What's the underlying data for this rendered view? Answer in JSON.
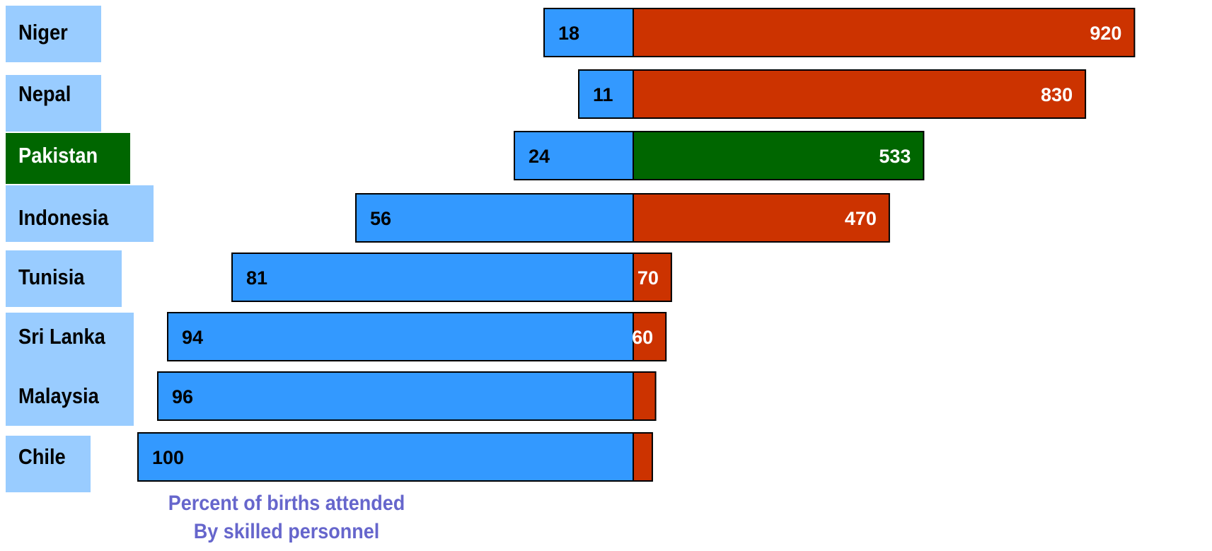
{
  "chart_data": {
    "type": "bar",
    "orientation": "horizontal-diverging",
    "categories": [
      "Niger",
      "Nepal",
      "Pakistan",
      "Indonesia",
      "Tunisia",
      "Sri Lanka",
      "Malaysia",
      "Chile"
    ],
    "highlight": "Pakistan",
    "series": [
      {
        "values": [
          18,
          11,
          24,
          56,
          81,
          94,
          96,
          100
        ]
      },
      {
        "values": [
          920,
          830,
          533,
          470,
          70,
          60,
          41,
          35
        ]
      }
    ],
    "value_labels": {
      "left": [
        "18",
        "11",
        "24",
        "56",
        "81",
        "94",
        "96",
        "100"
      ],
      "right": [
        "920",
        "830",
        "533",
        "470",
        "70",
        "60",
        "",
        ""
      ]
    },
    "xlabel_left": "Percent of births attended By skilled personnel",
    "colors": {
      "left_bar": "#3399ff",
      "right_bar": "#cc3300",
      "highlight_bar": "#006600",
      "label_box": "#99ccff",
      "highlight_label_box": "#006600",
      "label_text": "#000000",
      "highlight_label_text": "#ffffff",
      "caption": "#6666cc"
    }
  },
  "caption": {
    "line1": "Percent of births attended",
    "line2": "By skilled personnel"
  }
}
